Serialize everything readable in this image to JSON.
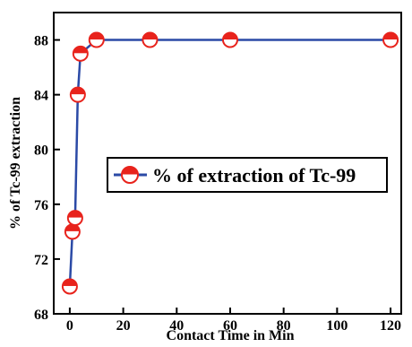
{
  "chart_data": {
    "type": "line",
    "title": "",
    "xlabel": "Contact Time in Min",
    "ylabel": "% of Tc-99 extraction",
    "xlim": [
      -6,
      124
    ],
    "ylim": [
      68,
      90
    ],
    "xticks": [
      0,
      20,
      40,
      60,
      80,
      100,
      120
    ],
    "yticks": [
      68,
      72,
      76,
      80,
      84,
      88
    ],
    "grid": false,
    "legend_position": "center-right",
    "series": [
      {
        "name": "% of extraction of Tc-99",
        "line_color": "#2b4aa6",
        "marker_color": "#e8231c",
        "marker": "half-filled-circle",
        "x": [
          0,
          1,
          2,
          3,
          4,
          10,
          30,
          60,
          120
        ],
        "y": [
          70,
          74,
          75,
          84,
          87,
          88,
          88,
          88,
          88
        ]
      }
    ]
  }
}
